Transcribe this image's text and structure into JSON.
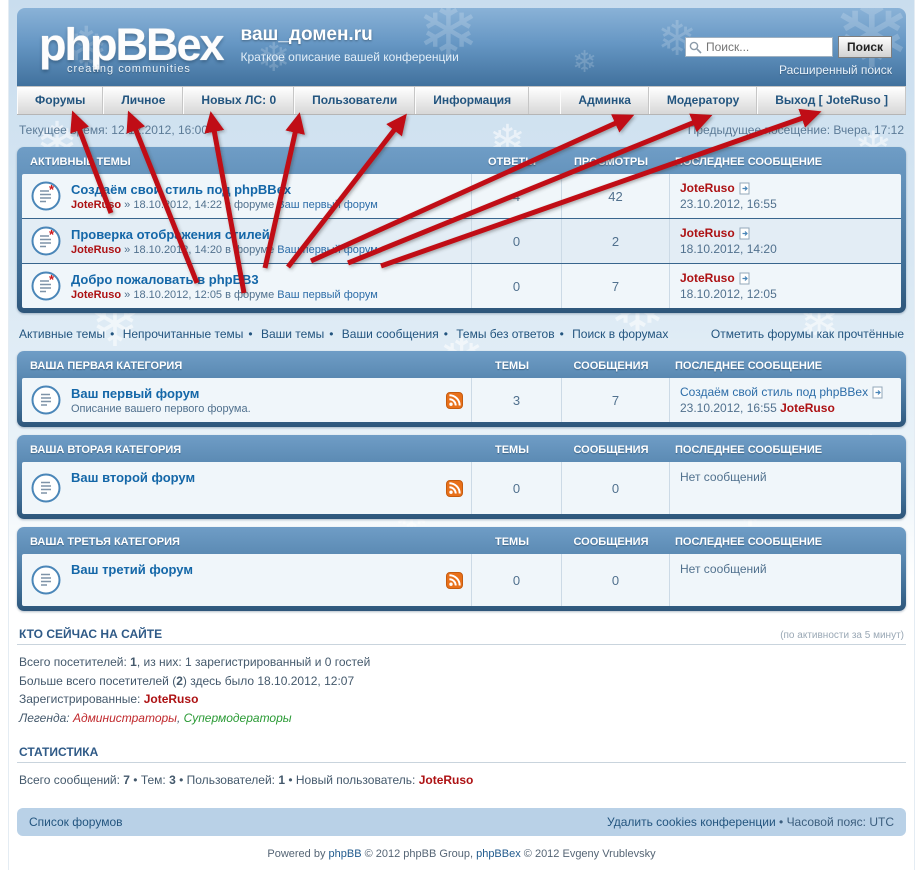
{
  "bullet": "•",
  "colors": {
    "header_blue": "#5d8cb5",
    "link_blue": "#23557f",
    "topic_blue": "#1467a8",
    "user_red": "#ad1113",
    "legend_green": "#2a9a35",
    "rss_orange": "#e8701a",
    "arrow_red": "#c01012"
  },
  "icons": {
    "search": "magnifier-icon",
    "topic": "document-with-star-icon",
    "forum": "document-icon",
    "rss": "rss-feed-icon",
    "last_post": "go-to-last-post-icon"
  },
  "header": {
    "logo_text": "phpBBex",
    "logo_tagline": "creating  communities",
    "site_title": "ваш_домен.ru",
    "site_desc": "Краткое описание вашей конференции",
    "search_placeholder": "Поиск...",
    "search_button": "Поиск",
    "advanced_search": "Расширенный поиск"
  },
  "nav": {
    "left": [
      "Форумы",
      "Личное",
      "Новых ЛС: 0",
      "Пользователи",
      "Информация"
    ],
    "right": [
      "Админка",
      "Модератору",
      "Выход [ JoteRuso ]"
    ]
  },
  "timebar": {
    "current": "Текущее время: 12.12.2012, 16:00",
    "last_visit": "Предыдущее посещение: Вчера, 17:12"
  },
  "active_topics": {
    "title": "АКТИВНЫЕ ТЕМЫ",
    "col_replies": "ОТВЕТЫ",
    "col_views": "ПРОСМОТРЫ",
    "col_last": "ПОСЛЕДНЕЕ СООБЩЕНИЕ",
    "rows": [
      {
        "title": "Создаём свой стиль под phpBBex",
        "author": "JoteRuso",
        "meta": " » 18.10.2012, 14:22 в форуме ",
        "forum": "Ваш первый форум",
        "replies": "4",
        "views": "42",
        "last_author": "JoteRuso",
        "last_date": "23.10.2012, 16:55"
      },
      {
        "title": "Проверка отображения стилей",
        "author": "JoteRuso",
        "meta": " » 18.10.2012, 14:20 в форуме ",
        "forum": "Ваш первый форум",
        "replies": "0",
        "views": "2",
        "last_author": "JoteRuso",
        "last_date": "18.10.2012, 14:20"
      },
      {
        "title": "Добро пожаловать в phpBB3",
        "author": "JoteRuso",
        "meta": " » 18.10.2012, 12:05 в форуме ",
        "forum": "Ваш первый форум",
        "replies": "0",
        "views": "7",
        "last_author": "JoteRuso",
        "last_date": "18.10.2012, 12:05"
      }
    ]
  },
  "quicklinks": {
    "items": [
      "Активные темы",
      "Непрочитанные темы",
      "Ваши темы",
      "Ваши сообщения",
      "Темы без ответов",
      "Поиск в форумах"
    ],
    "right": "Отметить форумы как прочтённые"
  },
  "categories": [
    {
      "title": "ВАША ПЕРВАЯ КАТЕГОРИЯ",
      "col_topics": "ТЕМЫ",
      "col_posts": "СООБЩЕНИЯ",
      "col_last": "ПОСЛЕДНЕЕ СООБЩЕНИЕ",
      "forum": {
        "name": "Ваш первый форум",
        "desc": "Описание вашего первого форума.",
        "topics": "3",
        "posts": "7",
        "last_title": "Создаём свой стиль под phpBBex",
        "last_date": "23.10.2012, 16:55 ",
        "last_author": "JoteRuso"
      }
    },
    {
      "title": "ВАША ВТОРАЯ КАТЕГОРИЯ",
      "col_topics": "ТЕМЫ",
      "col_posts": "СООБЩЕНИЯ",
      "col_last": "ПОСЛЕДНЕЕ СООБЩЕНИЕ",
      "forum": {
        "name": "Ваш второй форум",
        "desc": "",
        "topics": "0",
        "posts": "0",
        "last_none": "Нет сообщений"
      }
    },
    {
      "title": "ВАША ТРЕТЬЯ КАТЕГОРИЯ",
      "col_topics": "ТЕМЫ",
      "col_posts": "СООБЩЕНИЯ",
      "col_last": "ПОСЛЕДНЕЕ СООБЩЕНИЕ",
      "forum": {
        "name": "Ваш третий форум",
        "desc": "",
        "topics": "0",
        "posts": "0",
        "last_none": "Нет сообщений"
      }
    }
  ],
  "whos_online": {
    "title": "КТО СЕЙЧАС НА САЙТЕ",
    "note": "(по активности за 5 минут)",
    "visitors_pre": "Всего посетителей: ",
    "visitors_count": "1",
    "visitors_post": ", из них: 1 зарегистрированный и 0 гостей",
    "record_pre": "Больше всего посетителей (",
    "record_count": "2",
    "record_post": ") здесь было 18.10.2012, 12:07",
    "registered_label": "Зарегистрированные: ",
    "registered_user": "JoteRuso",
    "legend_label": "Легенда: ",
    "legend_admins": "Администраторы",
    "legend_sep": ", ",
    "legend_mods": "Супермодераторы"
  },
  "stats": {
    "title": "СТАТИСТИКА",
    "p1": "Всего сообщений: ",
    "v1": "7",
    "p2": " • Тем: ",
    "v2": "3",
    "p3": " • Пользователей: ",
    "v3": "1",
    "p4": " • Новый пользователь: ",
    "user": "JoteRuso"
  },
  "footer": {
    "index_link": "Список форумов",
    "cookies_link": "Удалить cookies конференции",
    "sep": " • ",
    "timezone": "Часовой пояс: UTC",
    "copy_pre": "Powered by ",
    "copy_phpbb": "phpBB",
    "copy_mid": " © 2012 phpBB Group, ",
    "copy_phpbbex": "phpBBex",
    "copy_post": " © 2012 Evgeny Vrublevsky"
  }
}
